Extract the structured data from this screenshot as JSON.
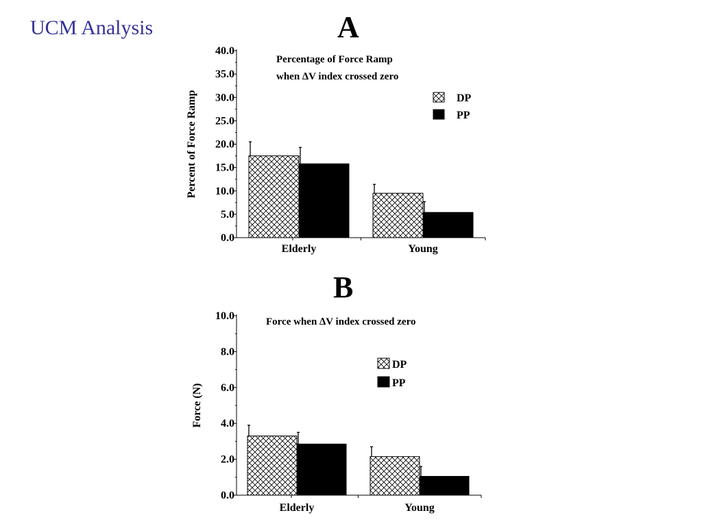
{
  "slide": {
    "title": "UCM Analysis"
  },
  "chart_data": [
    {
      "panel": "A",
      "type": "bar",
      "title_lines": [
        "Percentage of Force Ramp",
        "when ∆V index crossed zero"
      ],
      "ylabel": "Percent of Force Ramp",
      "xlabel": "",
      "categories": [
        "Elderly",
        "Young"
      ],
      "ylim": [
        0,
        40
      ],
      "yticks": [
        "0.0",
        "5.0",
        "10.0",
        "15.0",
        "20.0",
        "25.0",
        "30.0",
        "35.0",
        "40.0"
      ],
      "series": [
        {
          "name": "DP",
          "values": [
            17.5,
            9.5
          ],
          "errors": [
            3.0,
            1.9
          ],
          "pattern": "crosshatch"
        },
        {
          "name": "PP",
          "values": [
            15.8,
            5.4
          ],
          "errors": [
            3.5,
            2.3
          ],
          "pattern": "solid"
        }
      ],
      "legend": "top-right",
      "grid": false
    },
    {
      "panel": "B",
      "type": "bar",
      "title_lines": [
        "Force when ∆V index crossed zero"
      ],
      "ylabel": "Force (N)",
      "xlabel": "",
      "categories": [
        "Elderly",
        "Young"
      ],
      "ylim": [
        0,
        10
      ],
      "yticks": [
        "0.0",
        "2.0",
        "4.0",
        "6.0",
        "8.0",
        "10.0"
      ],
      "series": [
        {
          "name": "DP",
          "values": [
            3.3,
            2.15
          ],
          "errors": [
            0.6,
            0.55
          ],
          "pattern": "crosshatch"
        },
        {
          "name": "PP",
          "values": [
            2.85,
            1.05
          ],
          "errors": [
            0.65,
            0.55
          ],
          "pattern": "solid"
        }
      ],
      "legend": "middle",
      "grid": false
    }
  ]
}
